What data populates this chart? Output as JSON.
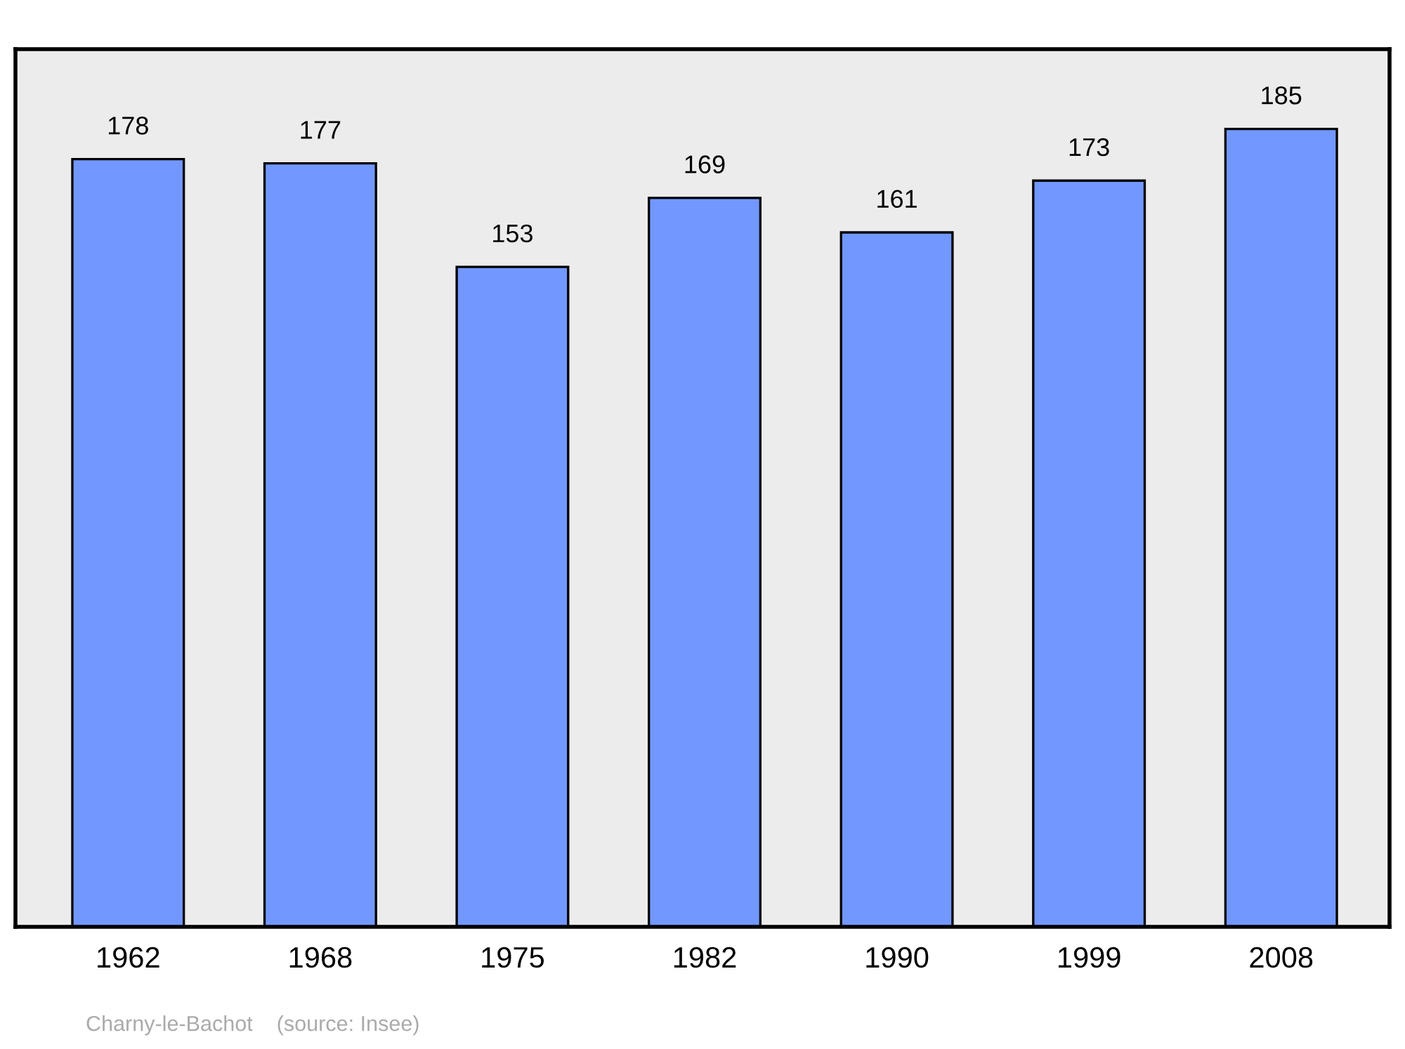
{
  "chart_data": {
    "type": "bar",
    "categories": [
      "1962",
      "1968",
      "1975",
      "1982",
      "1990",
      "1999",
      "2008"
    ],
    "values": [
      178,
      177,
      153,
      169,
      161,
      173,
      185
    ],
    "color": "#7298ff",
    "data_labels": true,
    "annotations": [
      "Charny-le-Bachot    (source: Insee)"
    ]
  }
}
